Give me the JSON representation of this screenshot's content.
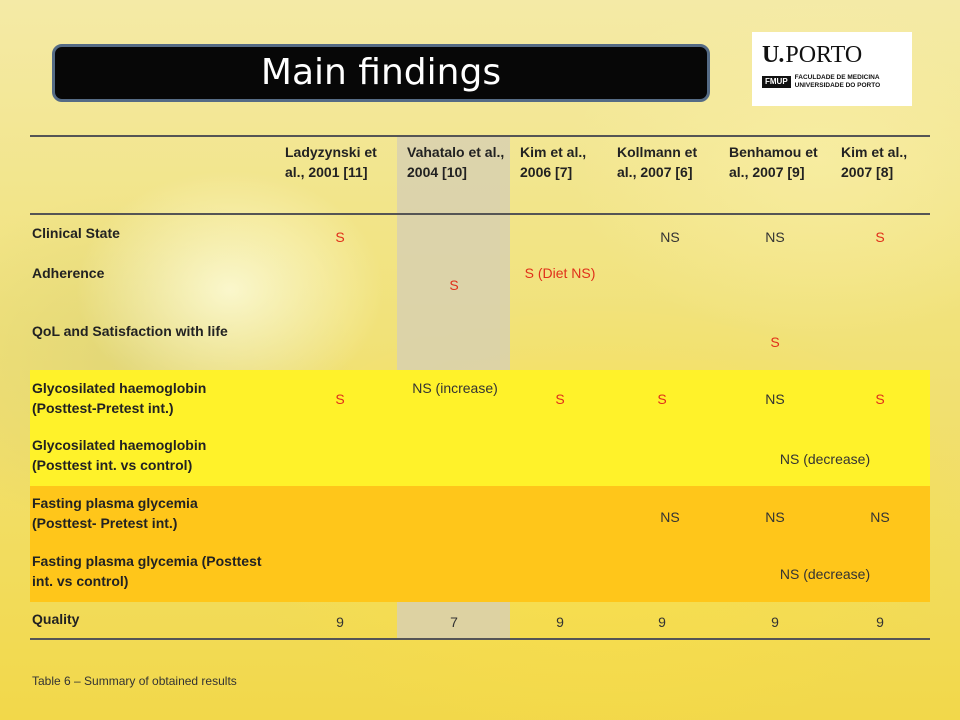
{
  "title": "Main findings",
  "logo": {
    "u": "U.",
    "porto": "PORTO",
    "mark": "FMUP",
    "sub1": "FACULDADE DE MEDICINA",
    "sub2": "UNIVERSIDADE DO PORTO"
  },
  "columns": [
    "Ladyzynski et al., 2001 [11]",
    "Vahatalo et al., 2004 [10]",
    "Kim et al., 2006 [7]",
    "Kollmann et al., 2007 [6]",
    "Benhamou et al., 2007 [9]",
    "Kim et al., 2007 [8]"
  ],
  "rows": {
    "clinical_state": "Clinical State",
    "adherence": "Adherence",
    "qol": "QoL and Satisfaction with life",
    "hba1c_pre_post": "Glycosilated haemoglobin (Posttest-Pretest int.)",
    "hba1c_vs_control": "Glycosilated haemoglobin (Posttest int. vs control)",
    "fpg_pre_post": "Fasting plasma glycemia (Posttest- Pretest int.)",
    "fpg_vs_control": "Fasting plasma glycemia (Posttest int. vs control)",
    "quality": "Quality"
  },
  "cells": {
    "cs_lady": "S",
    "cs_koll": "NS",
    "cs_benh": "NS",
    "cs_kim07": "S",
    "vaha_s": "S",
    "kim06_s": "S (Diet NS)",
    "benh_s": "S",
    "hb_lady": "S",
    "hb_vaha": "NS (increase)",
    "hb_kim06": "S",
    "hb_koll": "S",
    "hb_benh": "NS",
    "hb_kim07": "S",
    "hbc_benh": "NS (decrease)",
    "fpg_koll": "NS",
    "fpg_benh": "NS",
    "fpg_kim07": "NS",
    "fpgc_benh": "NS (decrease)",
    "q_lady": "9",
    "q_vaha": "7",
    "q_kim06": "9",
    "q_koll": "9",
    "q_benh": "9",
    "q_kim07": "9"
  },
  "caption": "Table 6 – Summary of obtained results",
  "colors": {
    "accent_red": "#e0301a",
    "band_gray": "#d8d0b0",
    "band_yellow": "#fff22a",
    "band_orange": "#ffc61a"
  }
}
